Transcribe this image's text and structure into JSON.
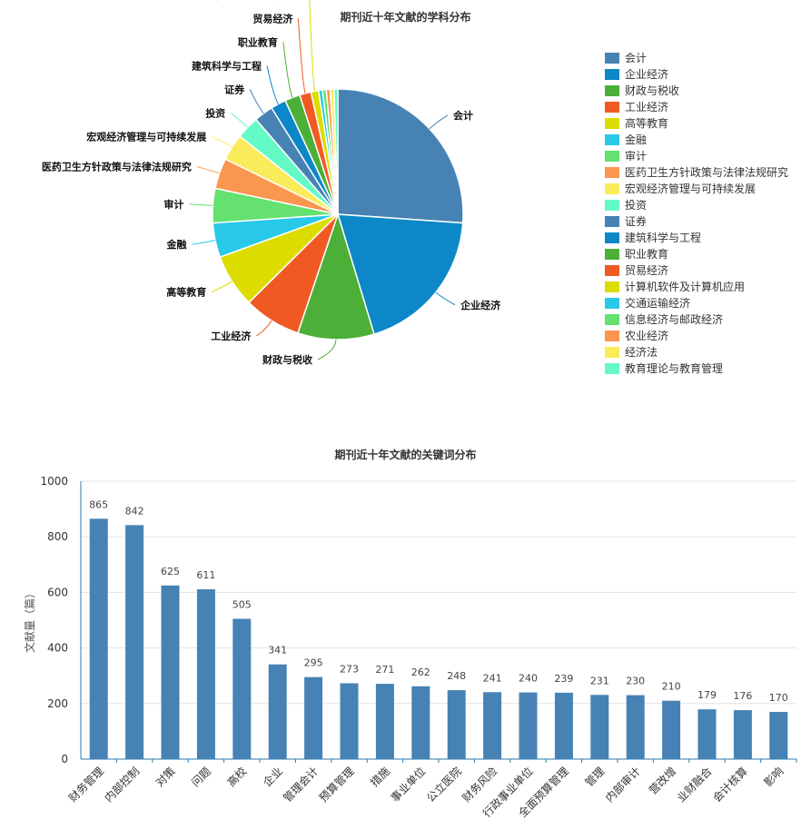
{
  "chart_data": [
    {
      "type": "pie",
      "title": "期刊近十年文献的学科分布",
      "categories": [
        "会计",
        "企业经济",
        "财政与税收",
        "工业经济",
        "高等教育",
        "金融",
        "审计",
        "医药卫生方针政策与法律法规研究",
        "宏观经济管理与可持续发展",
        "投资",
        "证券",
        "建筑科学与工程",
        "职业教育",
        "贸易经济",
        "计算机软件及计算机应用",
        "交通运输经济",
        "信息经济与邮政经济",
        "农业经济",
        "经济法",
        "教育理论与教育管理"
      ],
      "values": [
        26.5,
        19.5,
        10.0,
        7.5,
        7.0,
        4.5,
        4.5,
        4.0,
        3.5,
        3.0,
        2.5,
        2.0,
        2.0,
        1.5,
        1.0,
        0.5,
        0.5,
        0.5,
        0.5,
        0.5
      ],
      "colors": [
        "#4682B4",
        "#0C88C8",
        "#4CAF37",
        "#F05A22",
        "#DCDC00",
        "#28C8E8",
        "#64E16E",
        "#FA9650",
        "#FAEB5A",
        "#64FAC8",
        "#4682B4",
        "#0C88C8",
        "#4CAF37",
        "#F05A22",
        "#DCDC00",
        "#28C8E8",
        "#64E16E",
        "#FA9650",
        "#FAEB5A",
        "#64FAC8"
      ],
      "label_count": 15,
      "legend_position": "right"
    },
    {
      "type": "bar",
      "title": "期刊近十年文献的关键词分布",
      "categories": [
        "财务管理",
        "内部控制",
        "对策",
        "问题",
        "高校",
        "企业",
        "管理会计",
        "预算管理",
        "措施",
        "事业单位",
        "公立医院",
        "财务风险",
        "行政事业单位",
        "全面预算管理",
        "管理",
        "内部审计",
        "营改增",
        "业财融合",
        "会计核算",
        "影响"
      ],
      "values": [
        865,
        842,
        625,
        611,
        505,
        341,
        295,
        273,
        271,
        262,
        248,
        241,
        240,
        239,
        231,
        230,
        210,
        179,
        176,
        170
      ],
      "xlabel": "",
      "ylabel": "文献量（篇）",
      "ylim": [
        0,
        1000
      ],
      "yticks": [
        0,
        200,
        400,
        600,
        800,
        1000
      ],
      "bar_color": "#4682B4",
      "grid": true
    }
  ]
}
